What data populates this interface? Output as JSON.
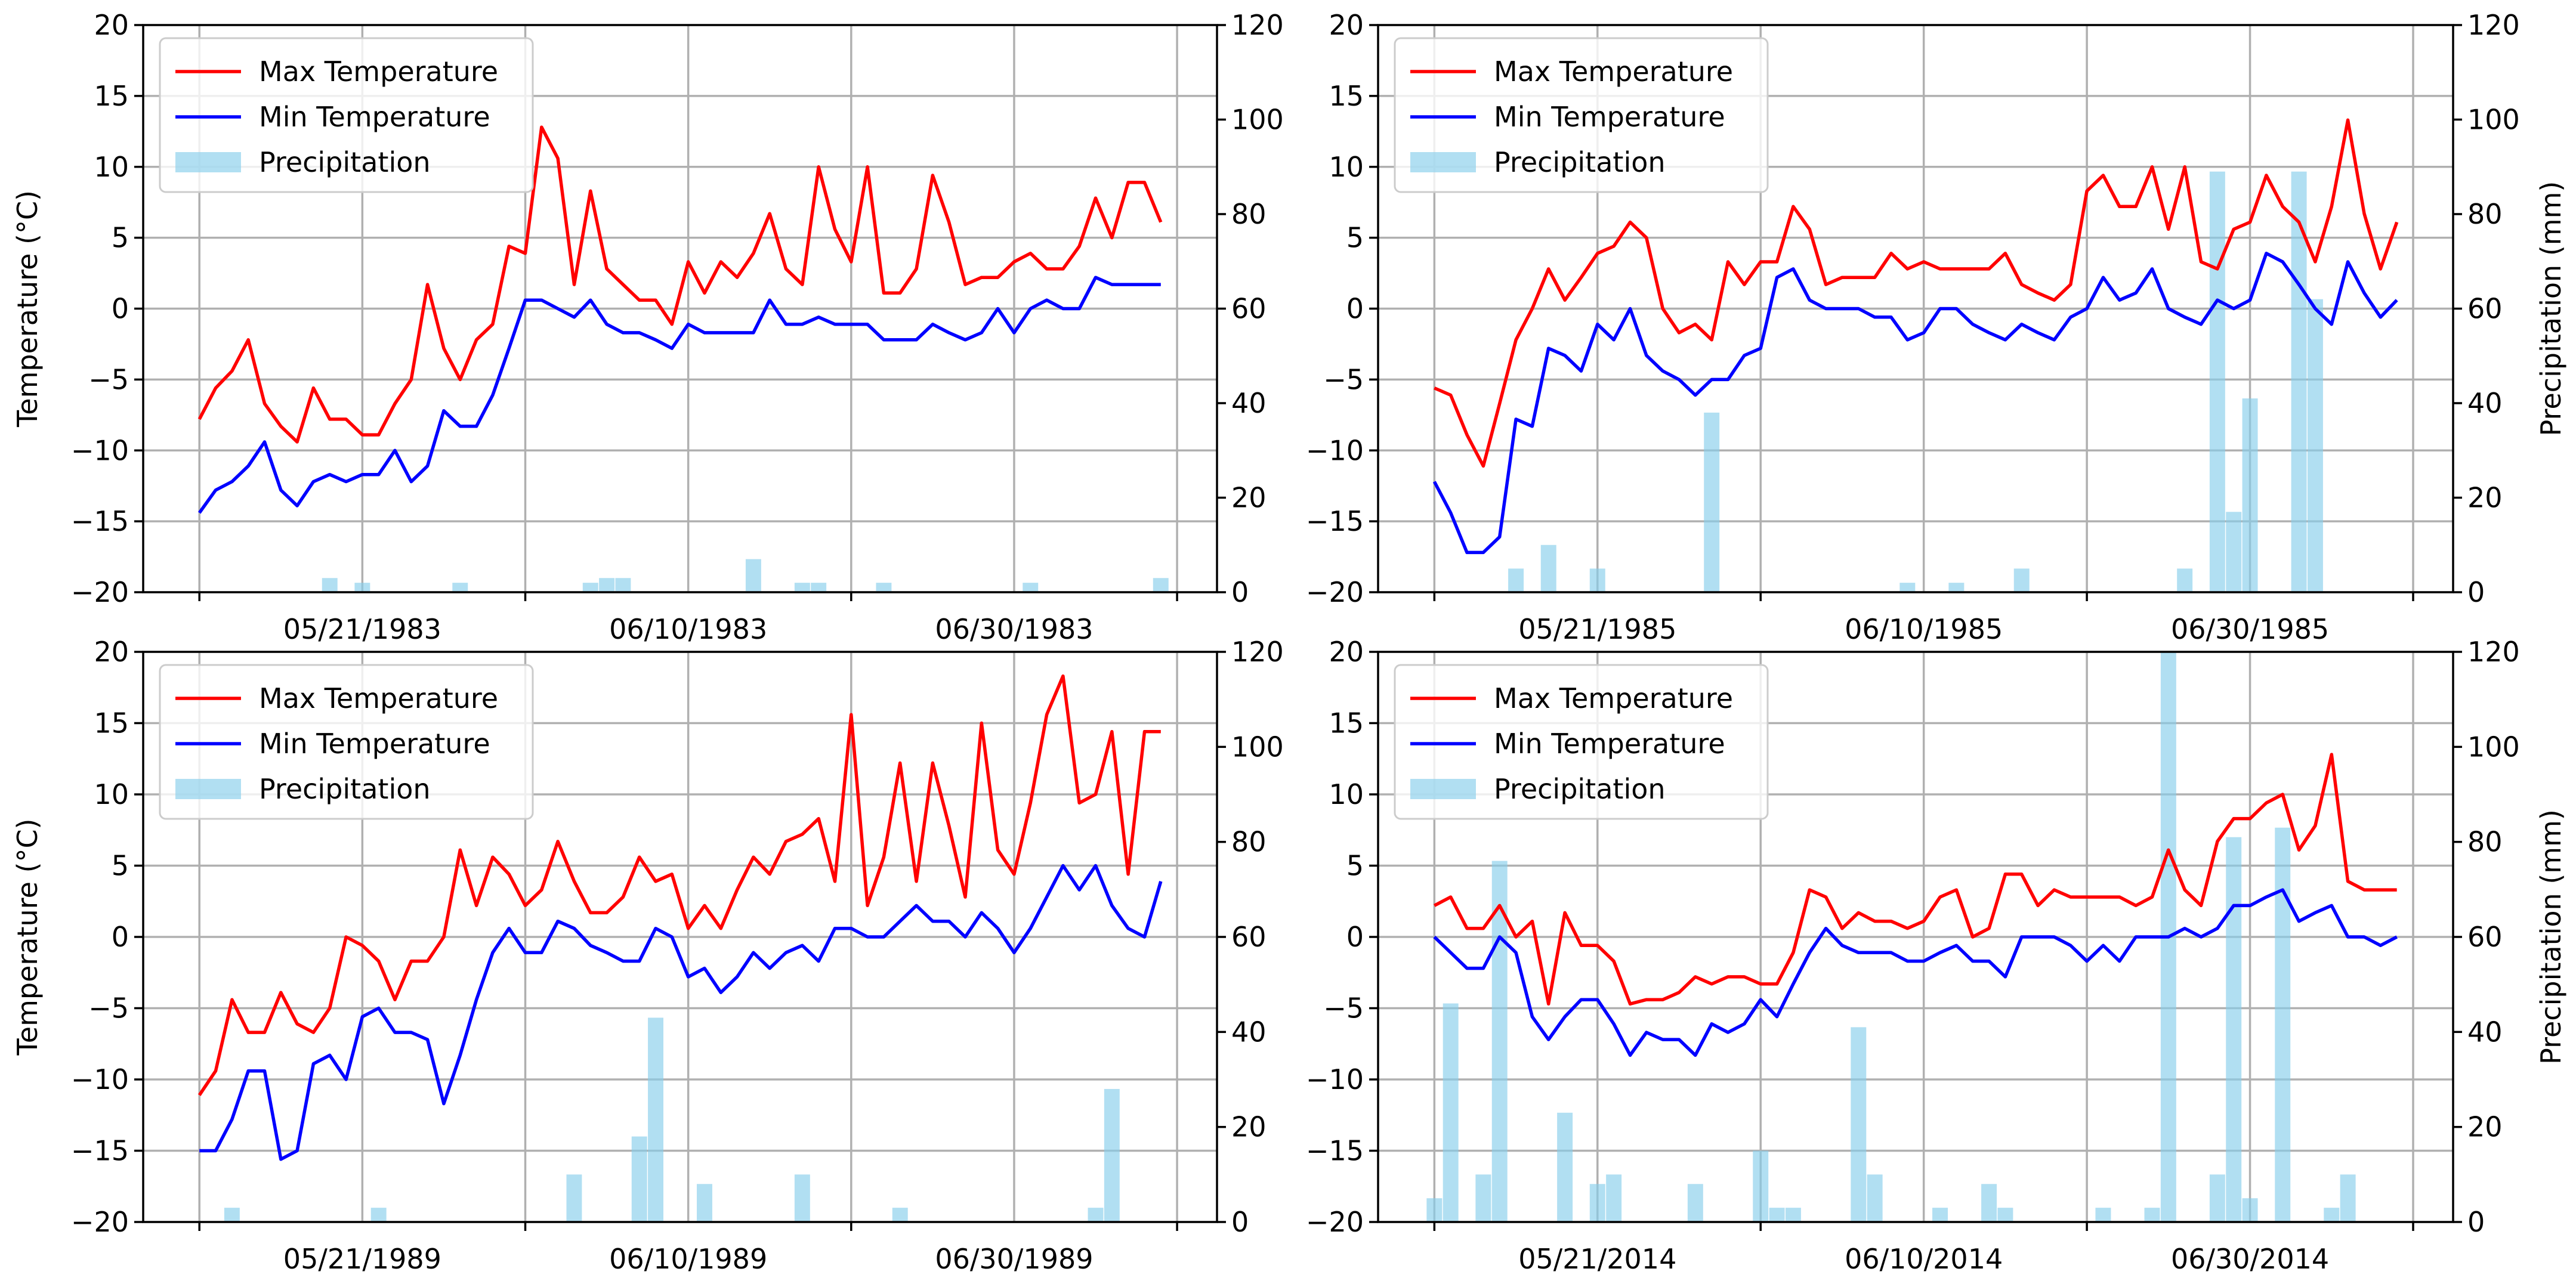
{
  "chart_data": [
    {
      "type": "line",
      "title": "",
      "xlabel": "",
      "ylabel": "Temperature (°C)",
      "ylabel2": "",
      "ylim": [
        -20,
        20
      ],
      "y2lim": [
        0,
        120
      ],
      "yticks": [
        "-20",
        "-15",
        "-10",
        "-5",
        "0",
        "5",
        "10",
        "15",
        "20"
      ],
      "y2ticks": [
        "0",
        "20",
        "40",
        "60",
        "80",
        "100",
        "120"
      ],
      "xticklabels": [
        "05/21/1983",
        "06/10/1983",
        "06/30/1983"
      ],
      "legend": [
        "Max Temperature",
        "Min Temperature",
        "Precipitation"
      ],
      "legend_position": "upper-left",
      "grid": true,
      "series": [
        {
          "name": "Max Temperature",
          "values": [
            -7.8,
            -5.6,
            -4.4,
            -2.2,
            -6.7,
            -8.3,
            -9.4,
            -5.6,
            -7.8,
            -7.8,
            -8.9,
            -8.9,
            -6.7,
            -5.0,
            1.7,
            -2.8,
            -5.0,
            -2.2,
            -1.1,
            4.4,
            3.9,
            12.8,
            10.6,
            1.7,
            8.3,
            2.8,
            1.7,
            0.6,
            0.6,
            -1.1,
            3.3,
            1.1,
            3.3,
            2.2,
            3.9,
            6.7,
            2.8,
            1.7,
            10.0,
            5.6,
            3.3,
            10.0,
            1.1,
            1.1,
            2.8,
            9.4,
            6.1,
            1.7,
            2.2,
            2.2,
            3.3,
            3.9,
            2.8,
            2.8,
            4.4,
            7.8,
            5.0,
            8.9,
            8.9,
            6.1
          ]
        },
        {
          "name": "Min Temperature",
          "values": [
            -14.4,
            -12.8,
            -12.2,
            -11.1,
            -9.4,
            -12.8,
            -13.9,
            -12.2,
            -11.7,
            -12.2,
            -11.7,
            -11.7,
            -10.0,
            -12.2,
            -11.1,
            -7.2,
            -8.3,
            -8.3,
            -6.1,
            -2.8,
            0.6,
            0.6,
            0.0,
            -0.6,
            0.6,
            -1.1,
            -1.7,
            -1.7,
            -2.2,
            -2.8,
            -1.1,
            -1.7,
            -1.7,
            -1.7,
            -1.7,
            0.6,
            -1.1,
            -1.1,
            -0.6,
            -1.1,
            -1.1,
            -1.1,
            -2.2,
            -2.2,
            -2.2,
            -1.1,
            -1.7,
            -2.2,
            -1.7,
            0.0,
            -1.7,
            0.0,
            0.6,
            0.0,
            0.0,
            2.2,
            1.7,
            1.7,
            1.7,
            1.7
          ]
        },
        {
          "name": "Precipitation",
          "axis": "right",
          "type": "bar",
          "values": [
            0,
            0,
            0,
            0,
            0,
            0,
            0,
            0,
            3,
            0,
            2,
            0,
            0,
            0,
            0,
            0,
            2,
            0,
            0,
            0,
            0,
            0,
            0,
            0,
            2,
            3,
            3,
            0,
            0,
            0,
            0,
            0,
            0,
            0,
            7,
            0,
            0,
            2,
            2,
            0,
            0,
            0,
            2,
            0,
            0,
            0,
            0,
            0,
            0,
            0,
            0,
            2,
            0,
            0,
            0,
            0,
            0,
            0,
            0,
            3
          ]
        }
      ]
    },
    {
      "type": "line",
      "title": "",
      "xlabel": "",
      "ylabel": "",
      "ylabel2": "Precipitation (mm)",
      "ylim": [
        -20,
        20
      ],
      "y2lim": [
        0,
        120
      ],
      "yticks": [
        "-20",
        "-15",
        "-10",
        "-5",
        "0",
        "5",
        "10",
        "15",
        "20"
      ],
      "y2ticks": [
        "0",
        "20",
        "40",
        "60",
        "80",
        "100",
        "120"
      ],
      "xticklabels": [
        "05/21/1985",
        "06/10/1985",
        "06/30/1985"
      ],
      "legend": [
        "Max Temperature",
        "Min Temperature",
        "Precipitation"
      ],
      "legend_position": "upper-left",
      "grid": true,
      "series": [
        {
          "name": "Max Temperature",
          "values": [
            -5.6,
            -6.1,
            -8.9,
            -11.1,
            -6.7,
            -2.2,
            0.0,
            2.8,
            0.6,
            2.2,
            3.9,
            4.4,
            6.1,
            5.0,
            0.0,
            -1.7,
            -1.1,
            -2.2,
            3.3,
            1.7,
            3.3,
            3.3,
            7.2,
            5.6,
            1.7,
            2.2,
            2.2,
            2.2,
            3.9,
            2.8,
            3.3,
            2.8,
            2.8,
            2.8,
            2.8,
            3.9,
            1.7,
            1.1,
            0.6,
            1.7,
            8.3,
            9.4,
            7.2,
            7.2,
            10.0,
            5.6,
            10.0,
            3.3,
            2.8,
            5.6,
            6.1,
            9.4,
            7.2,
            6.1,
            3.3,
            7.2,
            13.3,
            6.7,
            2.8,
            6.1
          ]
        },
        {
          "name": "Min Temperature",
          "values": [
            -12.2,
            -14.4,
            -17.2,
            -17.2,
            -16.1,
            -7.8,
            -8.3,
            -2.8,
            -3.3,
            -4.4,
            -1.1,
            -2.2,
            0.0,
            -3.3,
            -4.4,
            -5.0,
            -6.1,
            -5.0,
            -5.0,
            -3.3,
            -2.8,
            2.2,
            2.8,
            0.6,
            0.0,
            0.0,
            0.0,
            -0.6,
            -0.6,
            -2.2,
            -1.7,
            0.0,
            0.0,
            -1.1,
            -1.7,
            -2.2,
            -1.1,
            -1.7,
            -2.2,
            -0.6,
            0.0,
            2.2,
            0.6,
            1.1,
            2.8,
            0.0,
            -0.6,
            -1.1,
            0.6,
            0.0,
            0.6,
            3.9,
            3.3,
            1.7,
            0.0,
            -1.1,
            3.3,
            1.1,
            -0.6,
            0.6
          ]
        },
        {
          "name": "Precipitation",
          "axis": "right",
          "type": "bar",
          "values": [
            0,
            0,
            0,
            0,
            0,
            5,
            0,
            10,
            0,
            0,
            5,
            0,
            0,
            0,
            0,
            0,
            0,
            38,
            0,
            0,
            0,
            0,
            0,
            0,
            0,
            0,
            0,
            0,
            0,
            2,
            0,
            0,
            2,
            0,
            0,
            0,
            5,
            0,
            0,
            0,
            0,
            0,
            0,
            0,
            0,
            0,
            5,
            0,
            89,
            17,
            41,
            0,
            0,
            89,
            62,
            0,
            0,
            0,
            0,
            0
          ]
        }
      ]
    },
    {
      "type": "line",
      "title": "",
      "xlabel": "",
      "ylabel": "Temperature (°C)",
      "ylabel2": "",
      "ylim": [
        -20,
        20
      ],
      "y2lim": [
        0,
        120
      ],
      "yticks": [
        "-20",
        "-15",
        "-10",
        "-5",
        "0",
        "5",
        "10",
        "15",
        "20"
      ],
      "y2ticks": [
        "0",
        "20",
        "40",
        "60",
        "80",
        "100",
        "120"
      ],
      "xticklabels": [
        "05/21/1989",
        "06/10/1989",
        "06/30/1989"
      ],
      "legend": [
        "Max Temperature",
        "Min Temperature",
        "Precipitation"
      ],
      "legend_position": "upper-left",
      "grid": true,
      "series": [
        {
          "name": "Max Temperature",
          "values": [
            -11.1,
            -9.4,
            -4.4,
            -6.7,
            -6.7,
            -3.9,
            -6.1,
            -6.7,
            -5.0,
            0.0,
            -0.6,
            -1.7,
            -4.4,
            -1.7,
            -1.7,
            0.0,
            6.1,
            2.2,
            5.6,
            4.4,
            2.2,
            3.3,
            6.7,
            3.9,
            1.7,
            1.7,
            2.8,
            5.6,
            3.9,
            4.4,
            0.6,
            2.2,
            0.6,
            3.3,
            5.6,
            4.4,
            6.7,
            7.2,
            8.3,
            3.9,
            15.6,
            2.2,
            5.6,
            12.2,
            3.9,
            12.2,
            7.8,
            2.8,
            15.0,
            6.1,
            4.4,
            9.4,
            15.6,
            18.3,
            9.4,
            10.0,
            14.4,
            4.4,
            14.4,
            14.4
          ]
        },
        {
          "name": "Min Temperature",
          "values": [
            -15.0,
            -15.0,
            -12.8,
            -9.4,
            -9.4,
            -15.6,
            -15.0,
            -8.9,
            -8.3,
            -10.0,
            -5.6,
            -5.0,
            -6.7,
            -6.7,
            -7.2,
            -11.7,
            -8.3,
            -4.4,
            -1.1,
            0.6,
            -1.1,
            -1.1,
            1.1,
            0.6,
            -0.6,
            -1.1,
            -1.7,
            -1.7,
            0.6,
            0.0,
            -2.8,
            -2.2,
            -3.9,
            -2.8,
            -1.1,
            -2.2,
            -1.1,
            -0.6,
            -1.7,
            0.6,
            0.6,
            0.0,
            0.0,
            1.1,
            2.2,
            1.1,
            1.1,
            0.0,
            1.7,
            0.6,
            -1.1,
            0.6,
            2.8,
            5.0,
            3.3,
            5.0,
            2.2,
            0.6,
            0.0,
            3.9
          ]
        },
        {
          "name": "Precipitation",
          "axis": "right",
          "type": "bar",
          "values": [
            0,
            0,
            3,
            0,
            0,
            0,
            0,
            0,
            0,
            0,
            0,
            3,
            0,
            0,
            0,
            0,
            0,
            0,
            0,
            0,
            0,
            0,
            0,
            10,
            0,
            0,
            0,
            18,
            43,
            0,
            0,
            8,
            0,
            0,
            0,
            0,
            0,
            10,
            0,
            0,
            0,
            0,
            0,
            3,
            0,
            0,
            0,
            0,
            0,
            0,
            0,
            0,
            0,
            0,
            0,
            3,
            28,
            0,
            0,
            0
          ]
        }
      ]
    },
    {
      "type": "line",
      "title": "",
      "xlabel": "",
      "ylabel": "",
      "ylabel2": "Precipitation (mm)",
      "ylim": [
        -20,
        20
      ],
      "y2lim": [
        0,
        120
      ],
      "yticks": [
        "-20",
        "-15",
        "-10",
        "-5",
        "0",
        "5",
        "10",
        "15",
        "20"
      ],
      "y2ticks": [
        "0",
        "20",
        "40",
        "60",
        "80",
        "100",
        "120"
      ],
      "xticklabels": [
        "05/21/2014",
        "06/10/2014",
        "06/30/2014"
      ],
      "legend": [
        "Max Temperature",
        "Min Temperature",
        "Precipitation"
      ],
      "legend_position": "upper-left",
      "grid": true,
      "series": [
        {
          "name": "Max Temperature",
          "values": [
            2.2,
            2.8,
            0.6,
            0.6,
            2.2,
            0.0,
            1.1,
            -4.7,
            1.7,
            -0.6,
            -0.6,
            -1.7,
            -4.7,
            -4.4,
            -4.4,
            -3.9,
            -2.8,
            -3.3,
            -2.8,
            -2.8,
            -3.3,
            -3.3,
            -1.1,
            3.3,
            2.8,
            0.6,
            1.7,
            1.1,
            1.1,
            0.6,
            1.1,
            2.8,
            3.3,
            0.0,
            0.6,
            4.4,
            4.4,
            2.2,
            3.3,
            2.8,
            2.8,
            2.8,
            2.8,
            2.2,
            2.8,
            6.1,
            3.3,
            2.2,
            6.7,
            8.3,
            8.3,
            9.4,
            10.0,
            6.1,
            7.8,
            12.8,
            3.9,
            3.3,
            3.3,
            3.3
          ]
        },
        {
          "name": "Min Temperature",
          "values": [
            0.0,
            -1.1,
            -2.2,
            -2.2,
            0.0,
            -1.1,
            -5.6,
            -7.2,
            -5.6,
            -4.4,
            -4.4,
            -6.1,
            -8.3,
            -6.7,
            -7.2,
            -7.2,
            -8.3,
            -6.1,
            -6.7,
            -6.1,
            -4.4,
            -5.6,
            -3.3,
            -1.1,
            0.6,
            -0.6,
            -1.1,
            -1.1,
            -1.1,
            -1.7,
            -1.7,
            -1.1,
            -0.6,
            -1.7,
            -1.7,
            -2.8,
            0.0,
            0.0,
            0.0,
            -0.6,
            -1.7,
            -0.6,
            -1.7,
            0.0,
            0.0,
            0.0,
            0.6,
            0.0,
            0.6,
            2.2,
            2.2,
            2.8,
            3.3,
            1.1,
            1.7,
            2.2,
            0.0,
            0.0,
            -0.6,
            0.0
          ]
        },
        {
          "name": "Precipitation",
          "axis": "right",
          "type": "bar",
          "values": [
            5,
            46,
            0,
            10,
            76,
            0,
            0,
            0,
            23,
            0,
            8,
            10,
            0,
            0,
            0,
            0,
            8,
            0,
            0,
            0,
            15,
            3,
            3,
            0,
            0,
            0,
            41,
            10,
            0,
            0,
            0,
            3,
            0,
            0,
            8,
            3,
            0,
            0,
            0,
            0,
            0,
            3,
            0,
            0,
            3,
            120,
            0,
            0,
            10,
            81,
            5,
            0,
            83,
            0,
            0,
            3,
            10,
            0,
            0,
            0
          ]
        }
      ]
    }
  ]
}
